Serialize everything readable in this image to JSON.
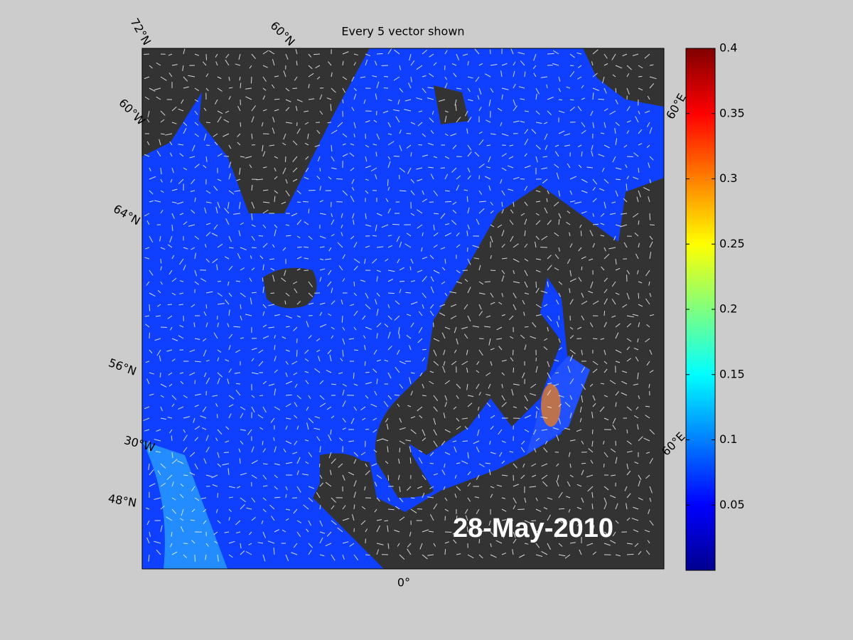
{
  "title": "Every 5 vector shown",
  "date_label": "28-May-2010",
  "map_labels": [
    "72°N",
    "60°N",
    "60°W",
    "64°N",
    "56°N",
    "30°W",
    "48°N",
    "0°",
    "60°E",
    "60°E"
  ],
  "colorbar": {
    "lim": [
      0,
      0.4
    ],
    "ticks": [
      0.05,
      0.1,
      0.15,
      0.2,
      0.25,
      0.3,
      0.35,
      0.4
    ]
  }
}
